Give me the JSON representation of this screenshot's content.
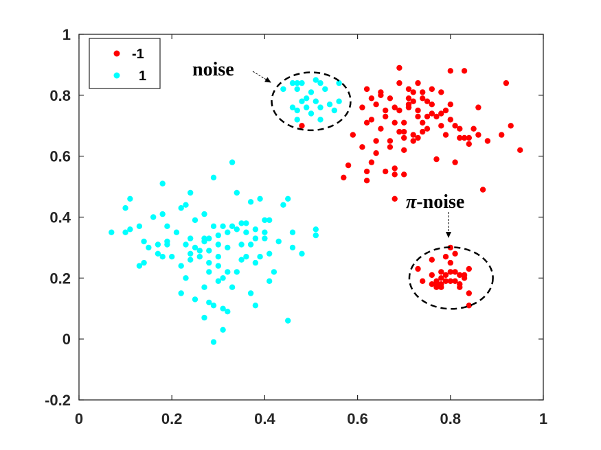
{
  "chart_data": {
    "type": "scatter",
    "xlim": [
      0,
      1
    ],
    "ylim": [
      -0.2,
      1
    ],
    "xticks": [
      "0",
      "0.2",
      "0.4",
      "0.6",
      "0.8",
      "1"
    ],
    "yticks": [
      "-0.2",
      "0",
      "0.2",
      "0.4",
      "0.6",
      "0.8",
      "1"
    ],
    "grid": false,
    "legend_position": "top-left",
    "series": [
      {
        "name": "-1",
        "color": "#ff0000",
        "points": [
          [
            0.48,
            0.7
          ],
          [
            0.57,
            0.53
          ],
          [
            0.58,
            0.57
          ],
          [
            0.59,
            0.67
          ],
          [
            0.61,
            0.63
          ],
          [
            0.61,
            0.76
          ],
          [
            0.62,
            0.71
          ],
          [
            0.62,
            0.82
          ],
          [
            0.62,
            0.55
          ],
          [
            0.62,
            0.52
          ],
          [
            0.63,
            0.72
          ],
          [
            0.63,
            0.79
          ],
          [
            0.63,
            0.58
          ],
          [
            0.64,
            0.61
          ],
          [
            0.64,
            0.65
          ],
          [
            0.64,
            0.77
          ],
          [
            0.65,
            0.8
          ],
          [
            0.65,
            0.81
          ],
          [
            0.65,
            0.69
          ],
          [
            0.66,
            0.73
          ],
          [
            0.66,
            0.75
          ],
          [
            0.66,
            0.55
          ],
          [
            0.67,
            0.65
          ],
          [
            0.67,
            0.63
          ],
          [
            0.67,
            0.79
          ],
          [
            0.68,
            0.56
          ],
          [
            0.68,
            0.46
          ],
          [
            0.68,
            0.54
          ],
          [
            0.68,
            0.76
          ],
          [
            0.68,
            0.71
          ],
          [
            0.69,
            0.89
          ],
          [
            0.69,
            0.84
          ],
          [
            0.69,
            0.68
          ],
          [
            0.69,
            0.75
          ],
          [
            0.7,
            0.54
          ],
          [
            0.7,
            0.62
          ],
          [
            0.7,
            0.66
          ],
          [
            0.7,
            0.68
          ],
          [
            0.7,
            0.71
          ],
          [
            0.71,
            0.79
          ],
          [
            0.71,
            0.77
          ],
          [
            0.71,
            0.76
          ],
          [
            0.71,
            0.82
          ],
          [
            0.72,
            0.67
          ],
          [
            0.72,
            0.65
          ],
          [
            0.72,
            0.81
          ],
          [
            0.72,
            0.78
          ],
          [
            0.73,
            0.73
          ],
          [
            0.73,
            0.66
          ],
          [
            0.73,
            0.84
          ],
          [
            0.74,
            0.79
          ],
          [
            0.74,
            0.81
          ],
          [
            0.74,
            0.68
          ],
          [
            0.74,
            0.71
          ],
          [
            0.75,
            0.69
          ],
          [
            0.75,
            0.73
          ],
          [
            0.75,
            0.78
          ],
          [
            0.76,
            0.82
          ],
          [
            0.76,
            0.77
          ],
          [
            0.77,
            0.59
          ],
          [
            0.77,
            0.73
          ],
          [
            0.78,
            0.7
          ],
          [
            0.78,
            0.74
          ],
          [
            0.78,
            0.81
          ],
          [
            0.79,
            0.67
          ],
          [
            0.79,
            0.75
          ],
          [
            0.8,
            0.77
          ],
          [
            0.8,
            0.88
          ],
          [
            0.8,
            0.72
          ],
          [
            0.81,
            0.7
          ],
          [
            0.81,
            0.58
          ],
          [
            0.82,
            0.69
          ],
          [
            0.82,
            0.66
          ],
          [
            0.83,
            0.88
          ],
          [
            0.83,
            0.66
          ],
          [
            0.84,
            0.66
          ],
          [
            0.84,
            0.64
          ],
          [
            0.85,
            0.69
          ],
          [
            0.86,
            0.76
          ],
          [
            0.86,
            0.67
          ],
          [
            0.87,
            0.49
          ],
          [
            0.88,
            0.65
          ],
          [
            0.91,
            0.67
          ],
          [
            0.92,
            0.84
          ],
          [
            0.93,
            0.7
          ],
          [
            0.95,
            0.62
          ],
          [
            0.73,
            0.75
          ],
          [
            0.76,
            0.74
          ],
          [
            0.73,
            0.23
          ],
          [
            0.74,
            0.19
          ],
          [
            0.76,
            0.21
          ],
          [
            0.76,
            0.26
          ],
          [
            0.76,
            0.18
          ],
          [
            0.77,
            0.17
          ],
          [
            0.77,
            0.19
          ],
          [
            0.78,
            0.2
          ],
          [
            0.78,
            0.18
          ],
          [
            0.78,
            0.22
          ],
          [
            0.78,
            0.17
          ],
          [
            0.79,
            0.21
          ],
          [
            0.79,
            0.19
          ],
          [
            0.79,
            0.27
          ],
          [
            0.8,
            0.19
          ],
          [
            0.8,
            0.25
          ],
          [
            0.8,
            0.3
          ],
          [
            0.8,
            0.22
          ],
          [
            0.81,
            0.19
          ],
          [
            0.81,
            0.22
          ],
          [
            0.82,
            0.18
          ],
          [
            0.82,
            0.21
          ],
          [
            0.82,
            0.17
          ],
          [
            0.83,
            0.21
          ],
          [
            0.83,
            0.2
          ],
          [
            0.84,
            0.15
          ],
          [
            0.84,
            0.11
          ],
          [
            0.84,
            0.23
          ],
          [
            0.81,
            0.28
          ],
          [
            0.77,
            0.18
          ]
        ]
      },
      {
        "name": "1",
        "color": "#00ffff",
        "points": [
          [
            0.07,
            0.35
          ],
          [
            0.1,
            0.35
          ],
          [
            0.1,
            0.43
          ],
          [
            0.11,
            0.36
          ],
          [
            0.11,
            0.46
          ],
          [
            0.13,
            0.24
          ],
          [
            0.13,
            0.37
          ],
          [
            0.14,
            0.25
          ],
          [
            0.14,
            0.32
          ],
          [
            0.15,
            0.3
          ],
          [
            0.16,
            0.4
          ],
          [
            0.17,
            0.31
          ],
          [
            0.17,
            0.28
          ],
          [
            0.18,
            0.41
          ],
          [
            0.18,
            0.27
          ],
          [
            0.18,
            0.51
          ],
          [
            0.19,
            0.32
          ],
          [
            0.19,
            0.37
          ],
          [
            0.19,
            0.31
          ],
          [
            0.2,
            0.27
          ],
          [
            0.21,
            0.35
          ],
          [
            0.22,
            0.43
          ],
          [
            0.22,
            0.15
          ],
          [
            0.22,
            0.24
          ],
          [
            0.23,
            0.44
          ],
          [
            0.23,
            0.31
          ],
          [
            0.23,
            0.2
          ],
          [
            0.24,
            0.28
          ],
          [
            0.24,
            0.33
          ],
          [
            0.24,
            0.26
          ],
          [
            0.24,
            0.48
          ],
          [
            0.25,
            0.13
          ],
          [
            0.25,
            0.39
          ],
          [
            0.25,
            0.3
          ],
          [
            0.26,
            0.27
          ],
          [
            0.26,
            0.29
          ],
          [
            0.27,
            0.07
          ],
          [
            0.27,
            0.17
          ],
          [
            0.27,
            0.32
          ],
          [
            0.27,
            0.41
          ],
          [
            0.27,
            0.33
          ],
          [
            0.28,
            0.33
          ],
          [
            0.28,
            0.12
          ],
          [
            0.28,
            0.22
          ],
          [
            0.28,
            0.25
          ],
          [
            0.28,
            0.29
          ],
          [
            0.29,
            -0.01
          ],
          [
            0.29,
            0.37
          ],
          [
            0.29,
            0.53
          ],
          [
            0.29,
            0.11
          ],
          [
            0.3,
            0.34
          ],
          [
            0.3,
            0.31
          ],
          [
            0.3,
            0.19
          ],
          [
            0.3,
            0.24
          ],
          [
            0.3,
            0.27
          ],
          [
            0.31,
            0.1
          ],
          [
            0.31,
            0.2
          ],
          [
            0.31,
            0.37
          ],
          [
            0.31,
            0.03
          ],
          [
            0.32,
            0.09
          ],
          [
            0.32,
            0.35
          ],
          [
            0.32,
            0.3
          ],
          [
            0.33,
            0.58
          ],
          [
            0.33,
            0.17
          ],
          [
            0.33,
            0.37
          ],
          [
            0.34,
            0.22
          ],
          [
            0.34,
            0.48
          ],
          [
            0.34,
            0.36
          ],
          [
            0.35,
            0.38
          ],
          [
            0.35,
            0.26
          ],
          [
            0.35,
            0.31
          ],
          [
            0.36,
            0.27
          ],
          [
            0.36,
            0.35
          ],
          [
            0.36,
            0.38
          ],
          [
            0.37,
            0.45
          ],
          [
            0.37,
            0.15
          ],
          [
            0.37,
            0.31
          ],
          [
            0.38,
            0.33
          ],
          [
            0.38,
            0.11
          ],
          [
            0.38,
            0.25
          ],
          [
            0.38,
            0.36
          ],
          [
            0.39,
            0.27
          ],
          [
            0.39,
            0.46
          ],
          [
            0.4,
            0.39
          ],
          [
            0.4,
            0.35
          ],
          [
            0.4,
            0.33
          ],
          [
            0.41,
            0.19
          ],
          [
            0.41,
            0.28
          ],
          [
            0.41,
            0.39
          ],
          [
            0.42,
            0.22
          ],
          [
            0.43,
            0.32
          ],
          [
            0.44,
            0.44
          ],
          [
            0.45,
            0.46
          ],
          [
            0.45,
            0.06
          ],
          [
            0.46,
            0.3
          ],
          [
            0.46,
            0.35
          ],
          [
            0.48,
            0.28
          ],
          [
            0.51,
            0.36
          ],
          [
            0.51,
            0.34
          ],
          [
            0.32,
            0.22
          ],
          [
            0.44,
            0.82
          ],
          [
            0.46,
            0.84
          ],
          [
            0.46,
            0.76
          ],
          [
            0.47,
            0.82
          ],
          [
            0.47,
            0.84
          ],
          [
            0.47,
            0.72
          ],
          [
            0.48,
            0.84
          ],
          [
            0.48,
            0.78
          ],
          [
            0.49,
            0.79
          ],
          [
            0.49,
            0.76
          ],
          [
            0.5,
            0.81
          ],
          [
            0.5,
            0.74
          ],
          [
            0.51,
            0.85
          ],
          [
            0.51,
            0.78
          ],
          [
            0.52,
            0.72
          ],
          [
            0.52,
            0.76
          ],
          [
            0.52,
            0.84
          ],
          [
            0.53,
            0.82
          ],
          [
            0.54,
            0.77
          ],
          [
            0.55,
            0.75
          ],
          [
            0.56,
            0.78
          ],
          [
            0.56,
            0.84
          ],
          [
            0.47,
            0.75
          ]
        ]
      }
    ],
    "annotations": [
      {
        "text": "noise",
        "target": [
          0.5,
          0.78
        ],
        "radius": [
          0.085,
          0.095
        ]
      },
      {
        "text": "π-noise",
        "italic_prefix": "π",
        "suffix": "-noise",
        "target": [
          0.8,
          0.2
        ],
        "radius": [
          0.09,
          0.11
        ]
      }
    ]
  }
}
